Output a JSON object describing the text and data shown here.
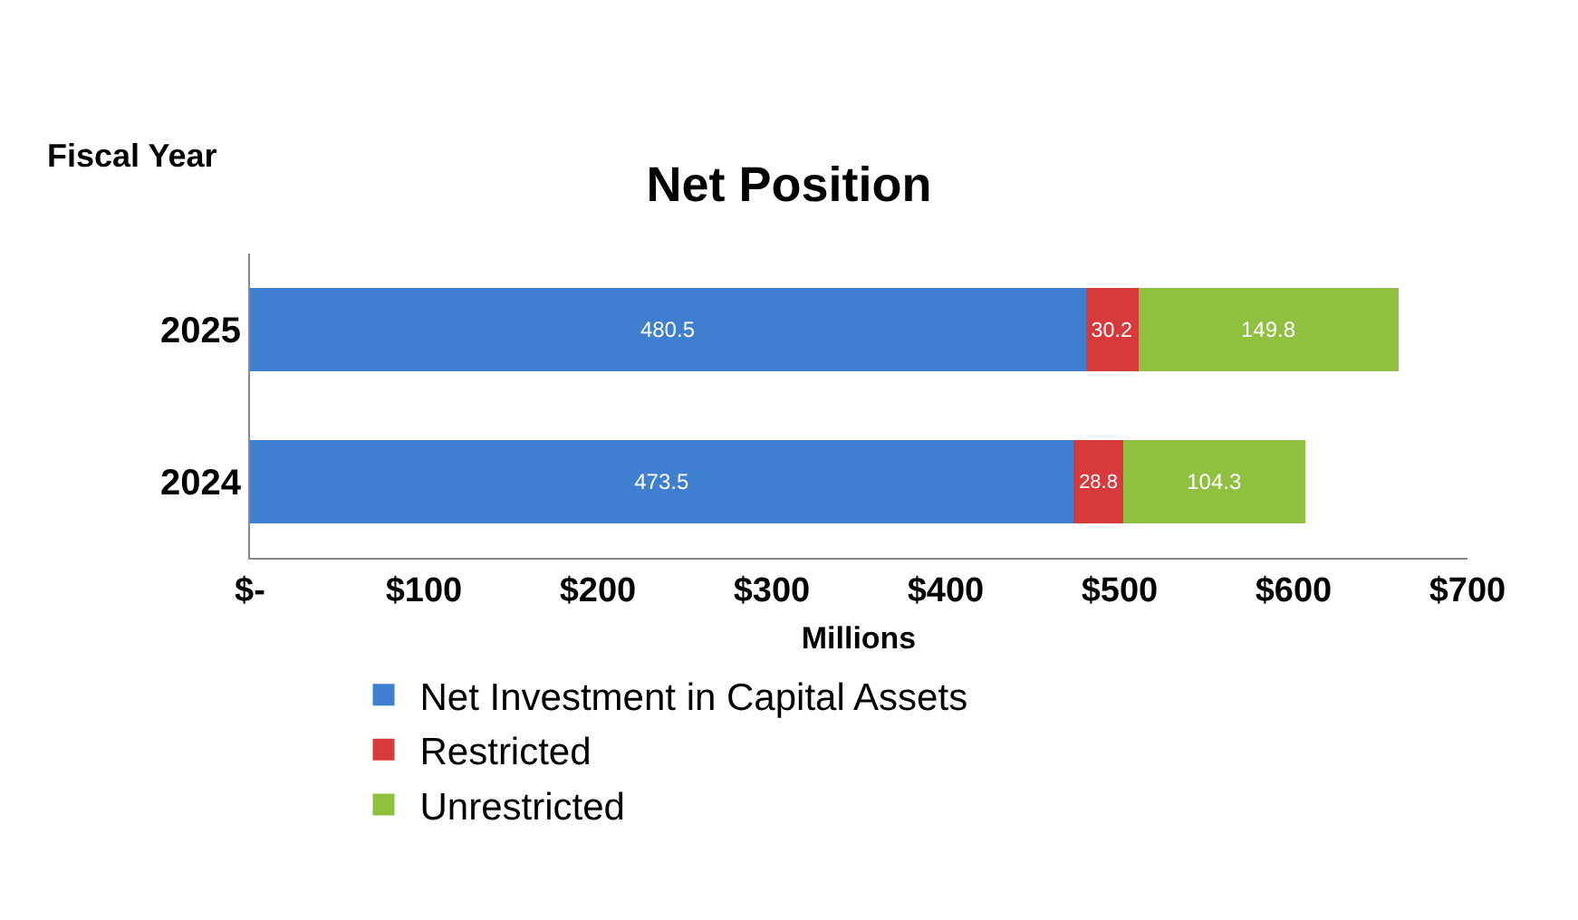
{
  "chart_data": {
    "type": "bar",
    "orientation": "horizontal",
    "stacked": true,
    "title": "Net Position",
    "ylabel": "Fiscal Year",
    "xlabel": "Millions",
    "categories": [
      "2025",
      "2024"
    ],
    "series": [
      {
        "name": "Net Investment in Capital Assets",
        "color": "#3f7fd0",
        "values": [
          480.5,
          473.5
        ]
      },
      {
        "name": "Restricted",
        "color": "#d63a3a",
        "values": [
          30.2,
          28.8
        ]
      },
      {
        "name": "Unrestricted",
        "color": "#8fc040",
        "values": [
          149.8,
          104.3
        ]
      }
    ],
    "data_labels": true,
    "xlim": [
      0,
      700
    ],
    "xticks": [
      {
        "value": 0,
        "label": "$-"
      },
      {
        "value": 100,
        "label": "$100"
      },
      {
        "value": 200,
        "label": "$200"
      },
      {
        "value": 300,
        "label": "$300"
      },
      {
        "value": 400,
        "label": "$400"
      },
      {
        "value": 500,
        "label": "$500"
      },
      {
        "value": 600,
        "label": "$600"
      },
      {
        "value": 700,
        "label": "$700"
      }
    ],
    "legend": "bottom left"
  }
}
